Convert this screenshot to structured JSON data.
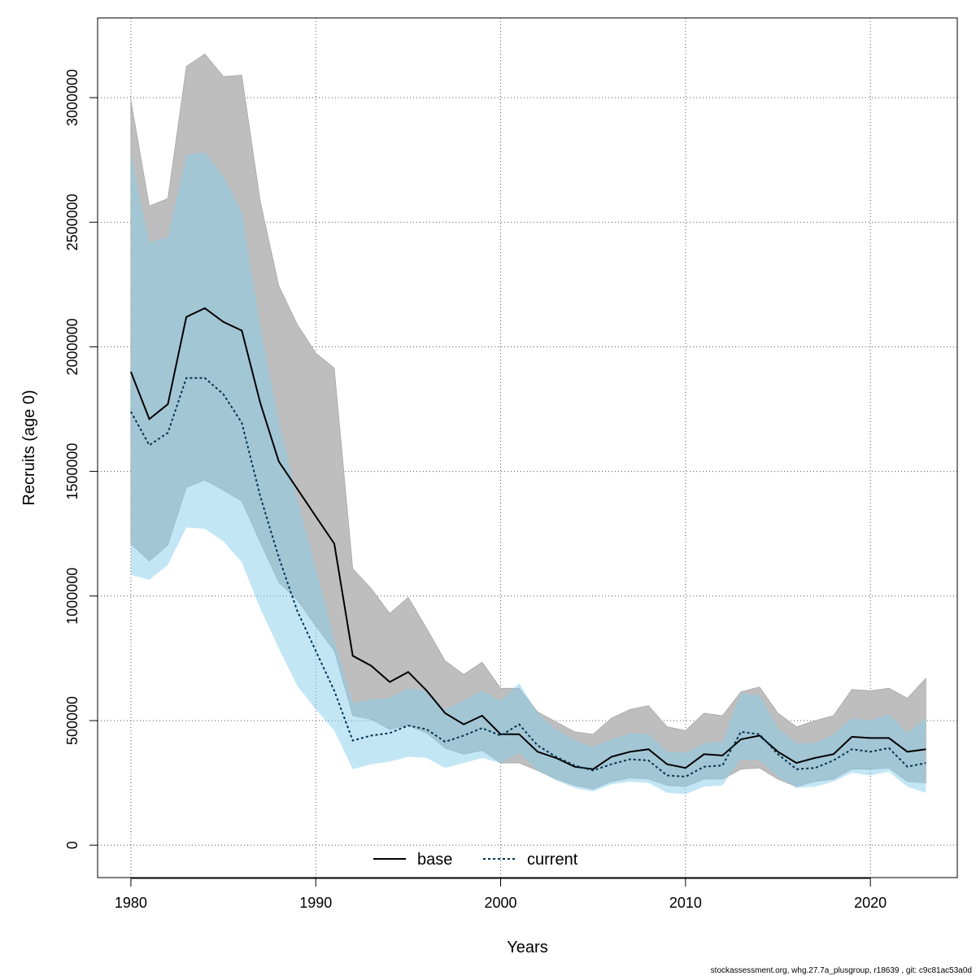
{
  "footer": "stockassessment.org, whg.27.7a_plusgroup, r18639 , git: c9c81ac53a0d",
  "chart_data": {
    "type": "line",
    "title": "",
    "xlabel": "Years",
    "ylabel": "Recruits (age 0)",
    "xlim": [
      1978.2,
      2024.7
    ],
    "ylim": [
      -130000,
      3320000
    ],
    "xticks": [
      1980,
      1990,
      2000,
      2010,
      2020
    ],
    "yticks": [
      0,
      500000,
      1000000,
      1500000,
      2000000,
      2500000,
      3000000
    ],
    "grid": true,
    "legend_position": "bottom-center",
    "colors": {
      "base_band": "#bebebe",
      "current_band": "#87ceeb",
      "base_line": "#000000",
      "current_line": "#00334d"
    },
    "x": [
      1980,
      1981,
      1982,
      1983,
      1984,
      1985,
      1986,
      1987,
      1988,
      1989,
      1990,
      1991,
      1992,
      1993,
      1994,
      1995,
      1996,
      1997,
      1998,
      1999,
      2000,
      2001,
      2002,
      2003,
      2004,
      2005,
      2006,
      2007,
      2008,
      2009,
      2010,
      2011,
      2012,
      2013,
      2014,
      2015,
      2016,
      2017,
      2018,
      2019,
      2020,
      2021,
      2022,
      2023
    ],
    "series": [
      {
        "name": "base",
        "style": "solid",
        "values": [
          1900000,
          1710000,
          1770000,
          2120000,
          2155000,
          2100000,
          2065000,
          1775000,
          1540000,
          1430000,
          1320000,
          1210000,
          760000,
          720000,
          655000,
          695000,
          620000,
          530000,
          485000,
          520000,
          445000,
          445000,
          375000,
          350000,
          315000,
          305000,
          355000,
          375000,
          385000,
          325000,
          310000,
          365000,
          360000,
          425000,
          440000,
          375000,
          330000,
          350000,
          365000,
          435000,
          430000,
          430000,
          375000,
          385000
        ],
        "lower": [
          1210000,
          1140000,
          1205000,
          1435000,
          1465000,
          1425000,
          1380000,
          1215000,
          1055000,
          985000,
          880000,
          780000,
          520000,
          505000,
          465000,
          480000,
          450000,
          390000,
          365000,
          380000,
          330000,
          330000,
          300000,
          265000,
          240000,
          225000,
          255000,
          270000,
          265000,
          240000,
          235000,
          265000,
          265000,
          305000,
          310000,
          265000,
          235000,
          255000,
          265000,
          305000,
          305000,
          310000,
          255000,
          250000
        ],
        "upper": [
          2990000,
          2565000,
          2595000,
          3125000,
          3175000,
          3085000,
          3090000,
          2585000,
          2245000,
          2090000,
          1975000,
          1915000,
          1110000,
          1030000,
          930000,
          995000,
          870000,
          740000,
          685000,
          735000,
          630000,
          630000,
          535000,
          495000,
          455000,
          445000,
          510000,
          545000,
          560000,
          475000,
          460000,
          530000,
          520000,
          615000,
          635000,
          530000,
          475000,
          500000,
          520000,
          625000,
          620000,
          630000,
          590000,
          670000
        ]
      },
      {
        "name": "current",
        "style": "dashed",
        "values": [
          1740000,
          1605000,
          1655000,
          1875000,
          1875000,
          1810000,
          1695000,
          1400000,
          1155000,
          940000,
          780000,
          620000,
          420000,
          440000,
          450000,
          480000,
          465000,
          415000,
          440000,
          470000,
          440000,
          485000,
          400000,
          355000,
          320000,
          300000,
          325000,
          345000,
          340000,
          280000,
          275000,
          315000,
          320000,
          455000,
          445000,
          365000,
          305000,
          310000,
          340000,
          385000,
          375000,
          390000,
          315000,
          330000
        ],
        "lower": [
          1085000,
          1065000,
          1125000,
          1275000,
          1270000,
          1220000,
          1135000,
          950000,
          790000,
          640000,
          545000,
          460000,
          305000,
          325000,
          335000,
          355000,
          350000,
          310000,
          330000,
          350000,
          330000,
          370000,
          300000,
          260000,
          230000,
          215000,
          245000,
          255000,
          250000,
          210000,
          205000,
          235000,
          240000,
          345000,
          340000,
          275000,
          230000,
          235000,
          255000,
          290000,
          280000,
          295000,
          235000,
          210000
        ],
        "upper": [
          2770000,
          2420000,
          2440000,
          2770000,
          2780000,
          2685000,
          2540000,
          2085000,
          1700000,
          1390000,
          1115000,
          825000,
          570000,
          585000,
          590000,
          630000,
          620000,
          545000,
          580000,
          620000,
          580000,
          650000,
          530000,
          465000,
          420000,
          395000,
          425000,
          450000,
          445000,
          375000,
          370000,
          410000,
          415000,
          610000,
          600000,
          470000,
          410000,
          410000,
          445000,
          510000,
          500000,
          525000,
          450000,
          510000
        ]
      }
    ]
  }
}
